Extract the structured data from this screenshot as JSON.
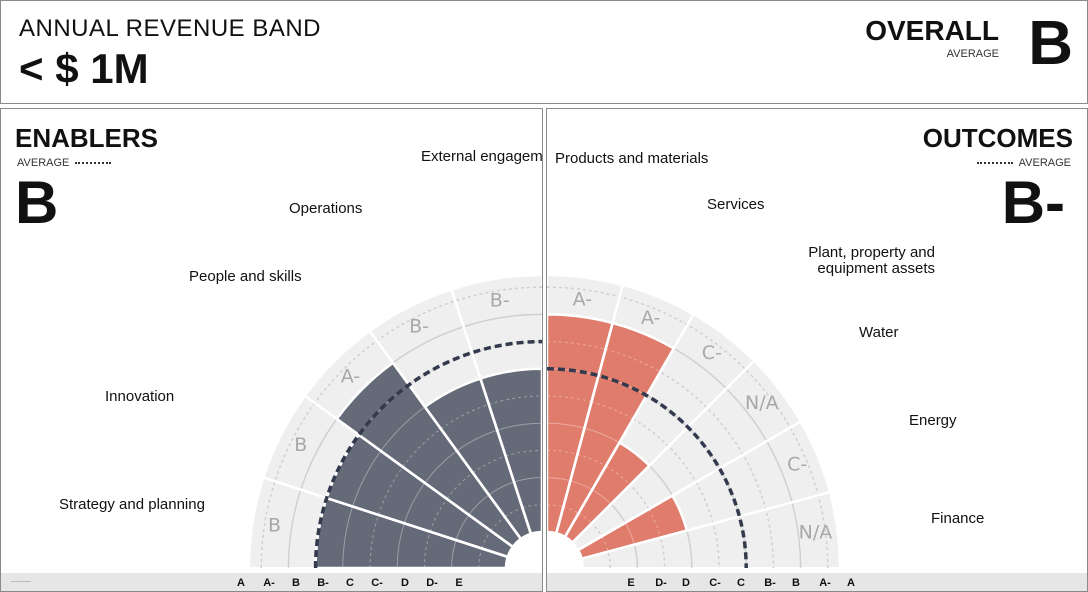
{
  "header": {
    "band_label": "ANNUAL REVENUE BAND",
    "band_value": "< $ 1M",
    "overall_title": "OVERALL",
    "overall_sub": "AVERAGE",
    "overall_grade": "B"
  },
  "colors": {
    "enablers_fill": "#656a78",
    "outcomes_fill": "#e07c6c",
    "background_wedge": "#efefef",
    "grid": "#d0d0d0",
    "average_line": "#343a4e"
  },
  "axis": {
    "left_ticks": [
      "A",
      "A-",
      "B",
      "B-",
      "C",
      "C-",
      "D",
      "D-",
      "E"
    ],
    "right_ticks": [
      "E",
      "D-",
      "D",
      "C-",
      "C",
      "B-",
      "B",
      "A-",
      "A"
    ]
  },
  "chart_data": [
    {
      "type": "radial-bar",
      "title": "ENABLERS",
      "average_label": "AVERAGE",
      "average_grade": "B",
      "scale": [
        "E",
        "D-",
        "D",
        "C-",
        "C",
        "B-",
        "B",
        "A-",
        "A"
      ],
      "average_value": 7,
      "categories": [
        "Strategy and planning",
        "Innovation",
        "People and skills",
        "Operations",
        "External engagement"
      ],
      "grades": [
        "B",
        "B",
        "A-",
        "B-",
        "B-"
      ],
      "values": [
        7,
        7,
        8,
        6,
        6
      ]
    },
    {
      "type": "radial-bar",
      "title": "OUTCOMES",
      "average_label": "AVERAGE",
      "average_grade": "B-",
      "scale": [
        "E",
        "D-",
        "D",
        "C-",
        "C",
        "B-",
        "B",
        "A-",
        "A"
      ],
      "average_value": 6,
      "categories": [
        "Products and materials",
        "Services",
        "Plant, property and equipment assets",
        "Water",
        "Energy",
        "Finance"
      ],
      "grades": [
        "A-",
        "A-",
        "C-",
        "N/A",
        "C-",
        "N/A"
      ],
      "values": [
        8,
        8,
        4,
        null,
        4,
        null
      ]
    }
  ]
}
